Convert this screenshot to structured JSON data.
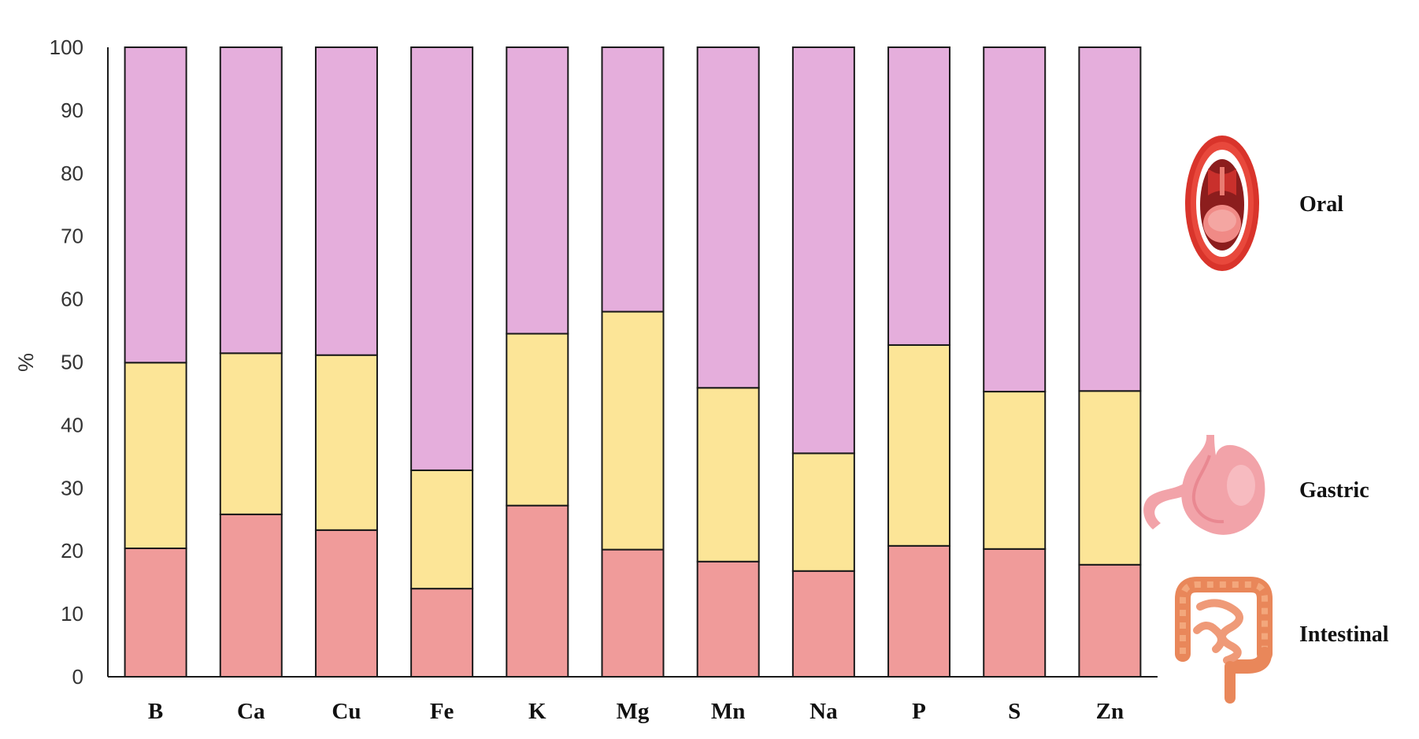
{
  "chart_data": {
    "type": "bar",
    "stacked": true,
    "ylabel": "%",
    "xlabel": "",
    "ylim": [
      0,
      100
    ],
    "yticks": [
      0,
      10,
      20,
      30,
      40,
      50,
      60,
      70,
      80,
      90,
      100
    ],
    "grid": false,
    "legend_position": "right",
    "categories": [
      "B",
      "Ca",
      "Cu",
      "Fe",
      "K",
      "Mg",
      "Mn",
      "Na",
      "P",
      "S",
      "Zn"
    ],
    "series": [
      {
        "name": "Intestinal",
        "color": "#F09B9A",
        "icon": "intestine-icon",
        "values": [
          20.4,
          25.8,
          23.3,
          14.0,
          27.2,
          20.2,
          18.3,
          16.8,
          20.8,
          20.3,
          17.8
        ]
      },
      {
        "name": "Gastric",
        "color": "#FCE597",
        "icon": "stomach-icon",
        "values": [
          29.5,
          25.6,
          27.8,
          18.8,
          27.3,
          37.8,
          27.6,
          18.7,
          31.9,
          25.0,
          27.6
        ]
      },
      {
        "name": "Oral",
        "color": "#E5AEDC",
        "icon": "mouth-icon",
        "values": [
          50.1,
          48.6,
          48.9,
          67.2,
          45.5,
          42.0,
          54.1,
          64.5,
          47.3,
          54.7,
          54.6
        ]
      }
    ],
    "legend": [
      {
        "label": "Oral",
        "icon": "mouth-icon"
      },
      {
        "label": "Gastric",
        "icon": "stomach-icon"
      },
      {
        "label": "Intestinal",
        "icon": "intestine-icon"
      }
    ]
  }
}
